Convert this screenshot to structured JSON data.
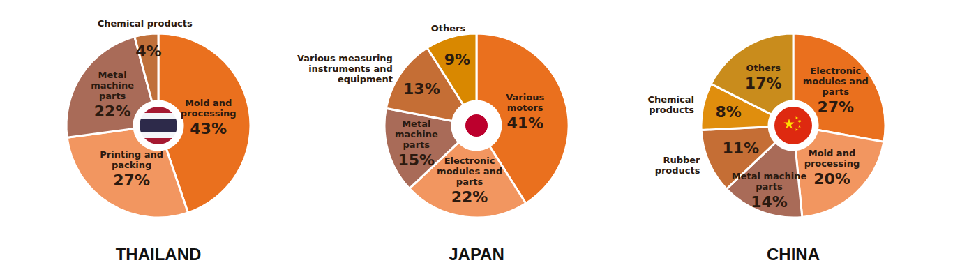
{
  "chart_data": [
    {
      "type": "pie",
      "title": "THAILAND",
      "categories": [
        "Mold and processing",
        "Printing and packing",
        "Metal machine parts",
        "Chemical products"
      ],
      "values": [
        43,
        27,
        22,
        4
      ],
      "value_labels": [
        "43%",
        "27%",
        "22%",
        "4%"
      ],
      "colors": [
        "#ea701e",
        "#f29660",
        "#a96b58",
        "#c0703a"
      ],
      "data_labels": true
    },
    {
      "type": "pie",
      "title": "JAPAN",
      "categories": [
        "Various motors",
        "Electronic modules and parts",
        "Metal machine parts",
        "Various measuring instruments and equipment",
        "Others"
      ],
      "values": [
        41,
        22,
        15,
        13,
        9
      ],
      "value_labels": [
        "41%",
        "22%",
        "15%",
        "13%",
        "9%"
      ],
      "colors": [
        "#ea701e",
        "#f29660",
        "#a96b58",
        "#c56e35",
        "#d98800"
      ],
      "data_labels": true
    },
    {
      "type": "pie",
      "title": "CHINA",
      "categories": [
        "Electronic modules and parts",
        "Mold and processing",
        "Metal machine parts",
        "Rubber products",
        "Chemical products",
        "Others"
      ],
      "values": [
        27,
        20,
        14,
        11,
        8,
        17
      ],
      "value_labels": [
        "27%",
        "20%",
        "14%",
        "11%",
        "8%",
        "17%"
      ],
      "colors": [
        "#ea701e",
        "#f29660",
        "#a96b58",
        "#c56e35",
        "#e08e0d",
        "#c98c1c"
      ],
      "data_labels": true
    }
  ]
}
